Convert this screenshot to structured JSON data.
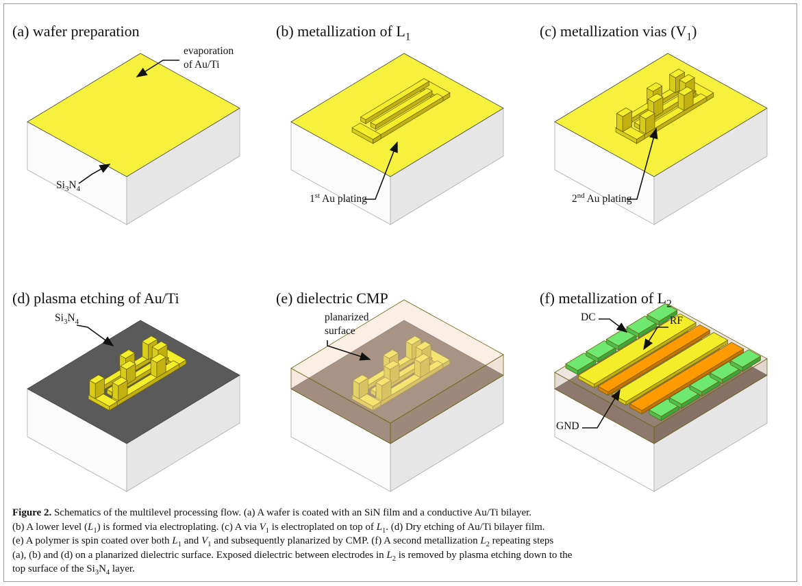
{
  "figure": {
    "panels": [
      {
        "title": [
          {
            "text": "(a) wafer preparation"
          }
        ],
        "labels": [
          [
            {
              "text": "evaporation"
            }
          ],
          [
            {
              "text": "of Au/Ti"
            }
          ],
          [
            {
              "text": "Si"
            },
            {
              "text": "3",
              "style": "sub"
            },
            {
              "text": "N"
            },
            {
              "text": "4",
              "style": "sub"
            }
          ]
        ]
      },
      {
        "title": [
          {
            "text": "(b) metallization of L"
          },
          {
            "text": "1",
            "style": "sub"
          }
        ],
        "labels": [
          [
            {
              "text": "1"
            },
            {
              "text": "st",
              "style": "sup"
            },
            {
              "text": " Au plating"
            }
          ]
        ]
      },
      {
        "title": [
          {
            "text": "(c) metallization vias (V"
          },
          {
            "text": "1",
            "style": "sub"
          },
          {
            "text": ")"
          }
        ],
        "labels": [
          [
            {
              "text": "2"
            },
            {
              "text": "nd",
              "style": "sup"
            },
            {
              "text": " Au plating"
            }
          ]
        ]
      },
      {
        "title": [
          {
            "text": "(d) plasma etching of Au/Ti"
          }
        ],
        "labels": [
          [
            {
              "text": "Si"
            },
            {
              "text": "3",
              "style": "sub"
            },
            {
              "text": "N"
            },
            {
              "text": "4",
              "style": "sub"
            }
          ]
        ]
      },
      {
        "title": [
          {
            "text": "(e) dielectric CMP"
          }
        ],
        "labels": [
          [
            {
              "text": "planarized"
            }
          ],
          [
            {
              "text": "surface"
            }
          ]
        ]
      },
      {
        "title": [
          {
            "text": "(f) metallization of L"
          },
          {
            "text": "2",
            "style": "sub"
          }
        ],
        "labels": [
          [
            {
              "text": "DC"
            }
          ],
          [
            {
              "text": "RF"
            }
          ],
          [
            {
              "text": "GND"
            }
          ]
        ]
      }
    ],
    "caption": {
      "lines": [
        [
          {
            "text": "Figure 2.",
            "style": "bold"
          },
          {
            "text": " Schematics of the multilevel processing flow. (a) A wafer is coated with an SiN film and a conductive Au/Ti bilayer."
          }
        ],
        [
          {
            "text": "(b) A lower level ("
          },
          {
            "text": "L",
            "style": "italic"
          },
          {
            "text": "1",
            "style": "sub"
          },
          {
            "text": ") is formed via electroplating. (c) A via "
          },
          {
            "text": "V",
            "style": "italic"
          },
          {
            "text": "1",
            "style": "sub"
          },
          {
            "text": " is electroplated on top of "
          },
          {
            "text": "L",
            "style": "italic"
          },
          {
            "text": "1",
            "style": "sub"
          },
          {
            "text": ". (d) Dry etching of Au/Ti bilayer film."
          }
        ],
        [
          {
            "text": "(e) A polymer is spin coated over both "
          },
          {
            "text": "L",
            "style": "italic"
          },
          {
            "text": "1",
            "style": "sub"
          },
          {
            "text": " and "
          },
          {
            "text": "V",
            "style": "italic"
          },
          {
            "text": "1",
            "style": "sub"
          },
          {
            "text": " and subsequently planarized by CMP. (f) A second metallization "
          },
          {
            "text": "L",
            "style": "italic"
          },
          {
            "text": "2",
            "style": "sub"
          },
          {
            "text": " repeating steps"
          }
        ],
        [
          {
            "text": "(a), (b) and (d) on a planarized dielectric surface. Exposed dielectric between electrodes in "
          },
          {
            "text": "L",
            "style": "italic"
          },
          {
            "text": "2",
            "style": "sub"
          },
          {
            "text": " is removed by plasma etching down to the"
          }
        ],
        [
          {
            "text": "top surface of the Si"
          },
          {
            "text": "3",
            "style": "sub"
          },
          {
            "text": "N"
          },
          {
            "text": "4",
            "style": "sub"
          },
          {
            "text": " layer."
          }
        ]
      ]
    }
  }
}
